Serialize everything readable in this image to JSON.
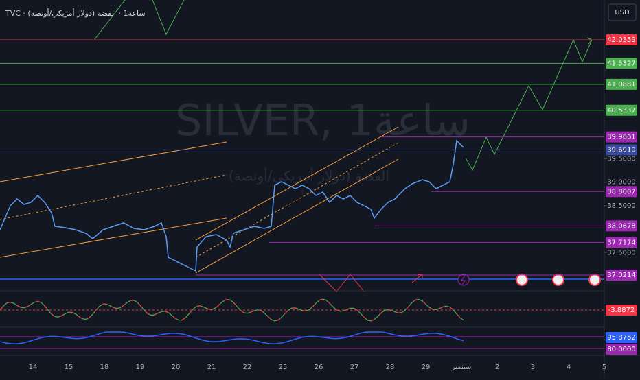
{
  "header": {
    "symbol": "TVC · ساعة1 · الفضة (دولار أمريكي/أونصة)",
    "currency": "USD"
  },
  "watermark": {
    "title": "SILVER, 1ساعة",
    "subtitle": "الفضة (دولار أمريكي/أونصة)"
  },
  "price_scale": {
    "levels": [
      {
        "value": 42.0359,
        "label": "42.0359",
        "color": "#f23645",
        "line": "#b2383f",
        "from": 0
      },
      {
        "value": 41.5327,
        "label": "41.5327",
        "color": "#4caf50",
        "line": "#4caf50",
        "from": 0
      },
      {
        "value": 41.0881,
        "label": "41.0881",
        "color": "#4caf50",
        "line": "#4caf50",
        "from": 0
      },
      {
        "value": 40.5337,
        "label": "40.5337",
        "color": "#4caf50",
        "line": "#4caf50",
        "from": 0
      },
      {
        "value": 39.9661,
        "label": "39.9661",
        "color": "#9c27b0",
        "line": "#9c27b0",
        "from": 555
      },
      {
        "value": 39.691,
        "label": "39.6910",
        "color": "#3a4a9e",
        "line": "#2a3a6e",
        "from": 0
      },
      {
        "value": 38.8007,
        "label": "38.8007",
        "color": "#9c27b0",
        "line": "#9c27b0",
        "from": 628
      },
      {
        "value": 38.0678,
        "label": "38.0678",
        "color": "#9c27b0",
        "line": "#9c27b0",
        "from": 545
      },
      {
        "value": 37.7174,
        "label": "37.7174",
        "color": "#9c27b0",
        "line": "#9c27b0",
        "from": 392
      },
      {
        "value": 37.0214,
        "label": "37.0214",
        "color": "#9c27b0",
        "line": "#9c27b0",
        "from": 285
      }
    ],
    "ticks": [
      {
        "value": 39.5,
        "label": "39.5000"
      },
      {
        "value": 39,
        "label": "39.0000"
      },
      {
        "value": 38.5,
        "label": "38.5000"
      },
      {
        "value": 37.5,
        "label": "37.5000"
      }
    ]
  },
  "indicators": [
    {
      "label": "-3.8872",
      "color": "#f23645"
    },
    {
      "label": "95.8762",
      "color": "#2962ff"
    },
    {
      "label": "80.0000",
      "color": "#9c27b0"
    }
  ],
  "time_axis": [
    "14",
    "15",
    "18",
    "19",
    "20",
    "21",
    "22",
    "25",
    "26",
    "27",
    "28",
    "29",
    "سبتمبر",
    "2",
    "3",
    "4",
    "5"
  ]
}
